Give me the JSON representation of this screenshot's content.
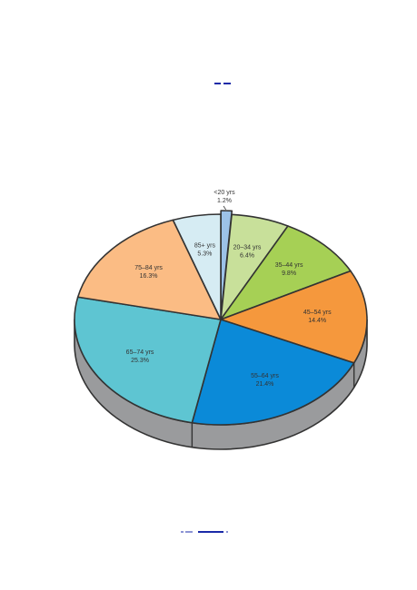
{
  "chart_data": {
    "type": "pie",
    "style": "3d-exploded-pie",
    "slices": [
      {
        "label": "<20 yrs",
        "value": 1.2,
        "value_label": "1.2%",
        "color": "#9cc2e8"
      },
      {
        "label": "20–34 yrs",
        "value": 6.4,
        "value_label": "6.4%",
        "color": "#c8e09a"
      },
      {
        "label": "35–44 yrs",
        "value": 9.8,
        "value_label": "9.8%",
        "color": "#a6d055"
      },
      {
        "label": "45–54 yrs",
        "value": 14.4,
        "value_label": "14.4%",
        "color": "#f5983d"
      },
      {
        "label": "55–64 yrs",
        "value": 21.4,
        "value_label": "21.4%",
        "color": "#0b8ad8"
      },
      {
        "label": "65–74 yrs",
        "value": 25.3,
        "value_label": "25.3%",
        "color": "#5ec5d2"
      },
      {
        "label": "75–84 yrs",
        "value": 16.3,
        "value_label": "16.3%",
        "color": "#fbbc84"
      },
      {
        "label": "85+ yrs",
        "value": 5.3,
        "value_label": "5.3%",
        "color": "#d6ecf3"
      }
    ],
    "side_color": "#9a9b9d",
    "outline_color": "#333333"
  },
  "decor": {
    "top_mark_color": "#1a2aa8",
    "bottom_mark_color": "#1a2aa8"
  }
}
